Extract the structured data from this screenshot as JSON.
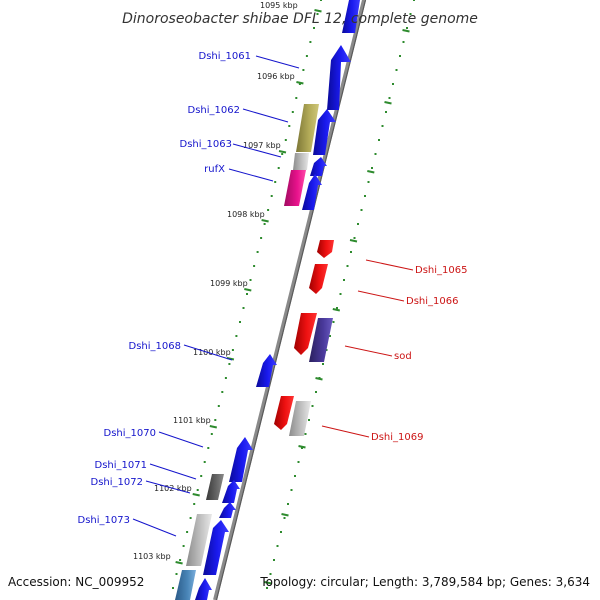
{
  "title": "Dinoroseobacter shibae DFL 12, complete genome",
  "accession_label": "Accession: NC_009952",
  "summary_label": "Topology: circular; Length: 3,789,584 bp; Genes: 3,634",
  "colors": {
    "backbone": "#777777",
    "ruler_tick": "#2e8b2e",
    "forward_label": "#1515cc",
    "reverse_label": "#cc1515",
    "blue": "#1a1aee",
    "red": "#ee1111",
    "olive": "#b5ad5a",
    "silver": "#bbbbbb",
    "magenta": "#e8128c",
    "indigo": "#4a3a9c",
    "darkgray": "#666666",
    "steelblue": "#4a86b8"
  },
  "ruler_labels": [
    "1095 kbp",
    "1096 kbp",
    "1097 kbp",
    "1098 kbp",
    "1099 kbp",
    "1100 kbp",
    "1101 kbp",
    "1102 kbp",
    "1103 kbp"
  ],
  "forward_genes": [
    "Dshi_1061",
    "Dshi_1062",
    "Dshi_1063",
    "rufX",
    "Dshi_1068",
    "Dshi_1070",
    "Dshi_1071",
    "Dshi_1072",
    "Dshi_1073"
  ],
  "reverse_genes": [
    "Dshi_1065",
    "Dshi_1066",
    "sod",
    "Dshi_1069"
  ]
}
